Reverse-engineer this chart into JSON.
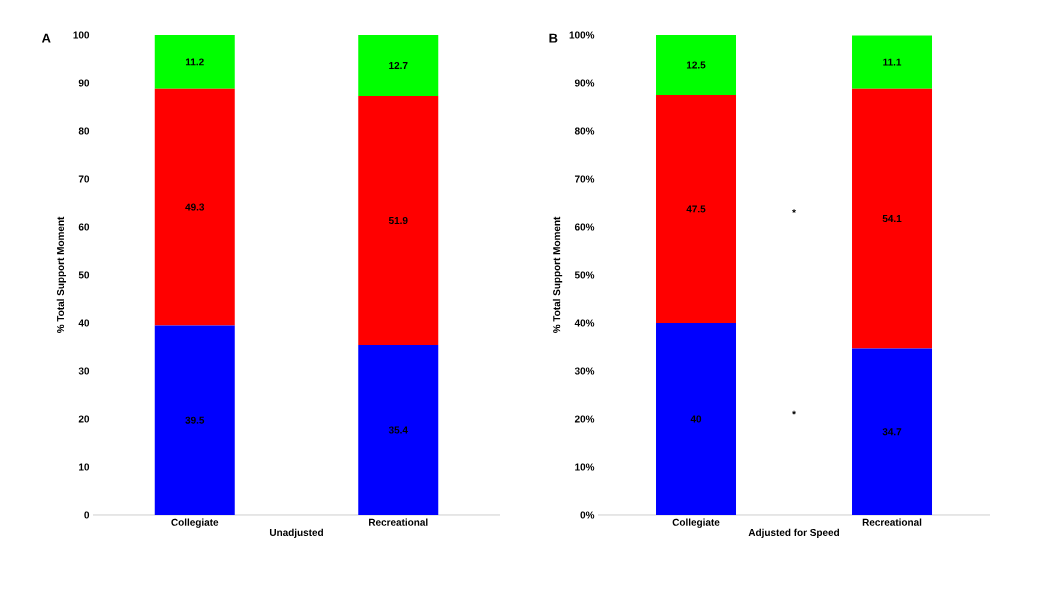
{
  "chart_data": [
    {
      "type": "bar",
      "stacked": true,
      "data_labels": true,
      "ylabel": "% Total Support Moment",
      "xlabel": "Unadjusted",
      "categories": [
        "Collegiate",
        "Recreational"
      ],
      "series": [
        {
          "color": "#0000ff",
          "values": [
            39.5,
            35.4
          ]
        },
        {
          "color": "#ff0000",
          "values": [
            49.3,
            51.9
          ]
        },
        {
          "color": "#00ff00",
          "values": [
            11.2,
            12.7
          ]
        }
      ],
      "ylim": [
        0,
        100
      ],
      "yticks": [
        0,
        10,
        20,
        30,
        40,
        50,
        60,
        70,
        80,
        90,
        100
      ],
      "annotations": [
        "A"
      ]
    },
    {
      "type": "bar",
      "stacked": true,
      "data_labels": true,
      "ylabel": "% Total Support Moment",
      "xlabel": "Adjusted for Speed",
      "categories": [
        "Collegiate",
        "Recreational"
      ],
      "series": [
        {
          "color": "#0000ff",
          "values": [
            40,
            34.7
          ]
        },
        {
          "color": "#ff0000",
          "values": [
            47.5,
            54.1
          ]
        },
        {
          "color": "#00ff00",
          "values": [
            12.5,
            11.1
          ]
        }
      ],
      "ylim": [
        0,
        100
      ],
      "yticks": [
        {
          "value": 0,
          "label": "0%"
        },
        {
          "value": 10,
          "label": "10%"
        },
        {
          "value": 20,
          "label": "20%"
        },
        {
          "value": 30,
          "label": "30%"
        },
        {
          "value": 40,
          "label": "40%"
        },
        {
          "value": 50,
          "label": "50%"
        },
        {
          "value": 60,
          "label": "60%"
        },
        {
          "value": 70,
          "label": "70%"
        },
        {
          "value": 80,
          "label": "80%"
        },
        {
          "value": 90,
          "label": "90%"
        },
        {
          "value": 100,
          "label": "100%"
        }
      ],
      "annotations": [
        "B",
        "*",
        "*"
      ]
    }
  ]
}
